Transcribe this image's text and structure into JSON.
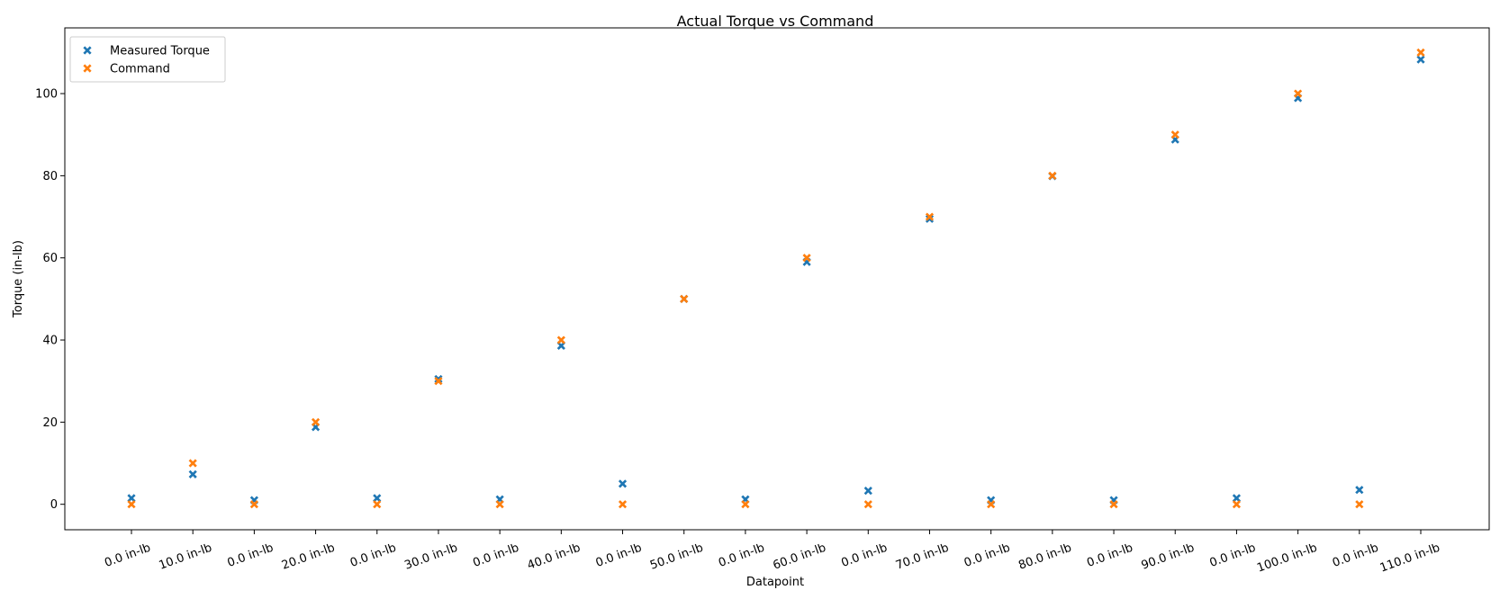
{
  "chart_data": {
    "type": "scatter",
    "title": "Actual Torque vs Command",
    "xlabel": "Datapoint",
    "ylabel": "Torque (in-lb)",
    "categories": [
      "0.0 in-lb",
      "10.0 in-lb",
      "0.0 in-lb",
      "20.0 in-lb",
      "0.0 in-lb",
      "30.0 in-lb",
      "0.0 in-lb",
      "40.0 in-lb",
      "0.0 in-lb",
      "50.0 in-lb",
      "0.0 in-lb",
      "60.0 in-lb",
      "0.0 in-lb",
      "70.0 in-lb",
      "0.0 in-lb",
      "80.0 in-lb",
      "0.0 in-lb",
      "90.0 in-lb",
      "0.0 in-lb",
      "100.0 in-lb",
      "0.0 in-lb",
      "110.0 in-lb"
    ],
    "ylim": [
      -6.2,
      116
    ],
    "yticks": [
      0,
      20,
      40,
      60,
      80,
      100
    ],
    "grid": false,
    "legend_position": "top-left",
    "series": [
      {
        "name": "Measured Torque",
        "color": "#1f77b4",
        "marker": "x-filled",
        "values": [
          1.5,
          7.3,
          1.0,
          18.8,
          1.5,
          30.5,
          1.2,
          38.6,
          5.0,
          50.0,
          1.2,
          59.0,
          3.3,
          69.5,
          1.0,
          79.9,
          1.0,
          88.8,
          1.5,
          98.9,
          3.5,
          108.3
        ]
      },
      {
        "name": "Command",
        "color": "#ff7f0e",
        "marker": "x-filled",
        "values": [
          0,
          10,
          0,
          20,
          0,
          30,
          0,
          40,
          0,
          50,
          0,
          60,
          0,
          70,
          0,
          80,
          0,
          90,
          0,
          100,
          0,
          110
        ]
      }
    ]
  }
}
